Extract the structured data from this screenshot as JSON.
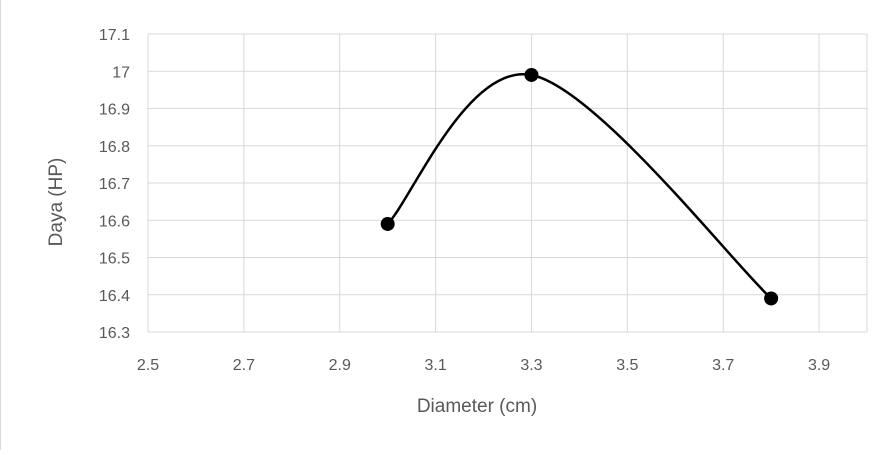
{
  "chart_data": {
    "type": "scatter",
    "title": "",
    "xlabel": "Diameter (cm)",
    "ylabel": "Daya (HP)",
    "xlim": [
      2.5,
      4.0
    ],
    "ylim": [
      16.3,
      17.1
    ],
    "x_ticks": [
      "2.5",
      "2.7",
      "2.9",
      "3.1",
      "3.3",
      "3.5",
      "3.7",
      "3.9"
    ],
    "y_ticks": [
      "16.3",
      "16.4",
      "16.5",
      "16.6",
      "16.7",
      "16.8",
      "16.9",
      "17",
      "17.1"
    ],
    "grid": true,
    "legend": "none",
    "smoothed_line": true,
    "colors": {
      "series": "#000000",
      "grid": "#d9d9d9",
      "text": "#595959"
    },
    "series": [
      {
        "x": [
          3.0,
          3.3,
          3.8
        ],
        "y": [
          16.59,
          16.99,
          16.39
        ]
      }
    ]
  }
}
